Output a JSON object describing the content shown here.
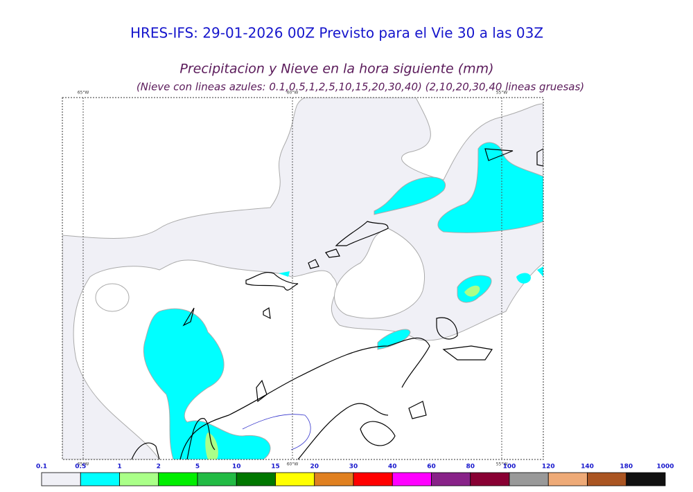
{
  "header": {
    "title": "HRES-IFS: 29-01-2026 00Z Previsto para el Vie 30 a las 03Z",
    "subtitle": "Precipitacion y Nieve en la hora siguiente (mm)",
    "note": "(Nieve con lineas azules: 0.1,0.5,1,2,5,10,15,20,30,40)  (2,10,20,30,40 lineas gruesas)"
  },
  "map": {
    "meridians": [
      "65°W",
      "60°W",
      "55°W"
    ]
  },
  "colorbar": {
    "labels": [
      "0.1",
      "0.5",
      "1",
      "2",
      "5",
      "10",
      "15",
      "20",
      "30",
      "40",
      "60",
      "80",
      "100",
      "120",
      "140",
      "180",
      "1000"
    ],
    "colors": [
      "#f0f0f6",
      "#00ffff",
      "#aaff88",
      "#00ee00",
      "#22bb44",
      "#007700",
      "#ffff00",
      "#e08020",
      "#ff0000",
      "#ff00ff",
      "#882288",
      "#880033",
      "#999999",
      "#eeaa77",
      "#aa5522",
      "#111111"
    ]
  }
}
